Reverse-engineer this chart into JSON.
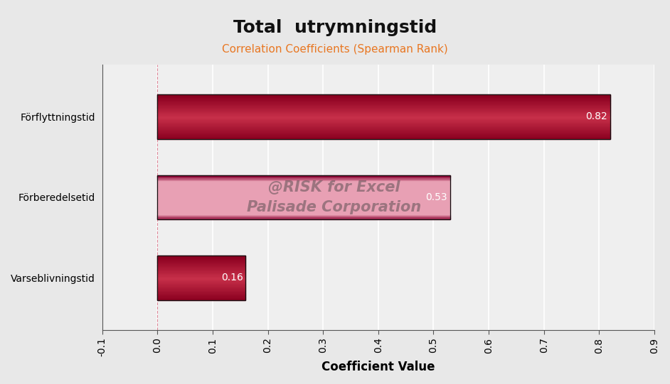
{
  "title": "Total  utrymningstid",
  "subtitle": "Correlation Coefficients (Spearman Rank)",
  "subtitle_color": "#E87722",
  "xlabel": "Coefficient Value",
  "categories": [
    "Varseblivningstid",
    "Förberedelsetid",
    "Förflyttningstid"
  ],
  "values": [
    0.16,
    0.53,
    0.82
  ],
  "bar_color_dark1": "#8B0020",
  "bar_color_dark2": "#A8002A",
  "bar_color_mid": "#C8304A",
  "bar_color_light": "#E8A0B4",
  "bar_border_color": "#111111",
  "value_labels": [
    "0.16",
    "0.53",
    "0.82"
  ],
  "value_label_color": "#ffffff",
  "watermark_line1": "@RISK for Excel",
  "watermark_line2": "Palisade Corporation",
  "watermark_color": "#404040",
  "watermark_alpha": 0.45,
  "xlim": [
    -0.1,
    0.9
  ],
  "xticks": [
    -0.1,
    0.0,
    0.1,
    0.2,
    0.3,
    0.4,
    0.5,
    0.6,
    0.7,
    0.8,
    0.9
  ],
  "xticklabels": [
    "-0.1",
    "0.0",
    "0.1",
    "0.2",
    "0.3",
    "0.4",
    "0.5",
    "0.6",
    "0.7",
    "0.8",
    "0.9"
  ],
  "zero_line_x": 0.0,
  "background_color": "#E8E8E8",
  "plot_bg_color": "#EFEFEF",
  "grid_color": "#FFFFFF",
  "title_fontsize": 18,
  "subtitle_fontsize": 11,
  "xlabel_fontsize": 12,
  "tick_fontsize": 10,
  "ytick_fontsize": 10,
  "bar_height": 0.55
}
